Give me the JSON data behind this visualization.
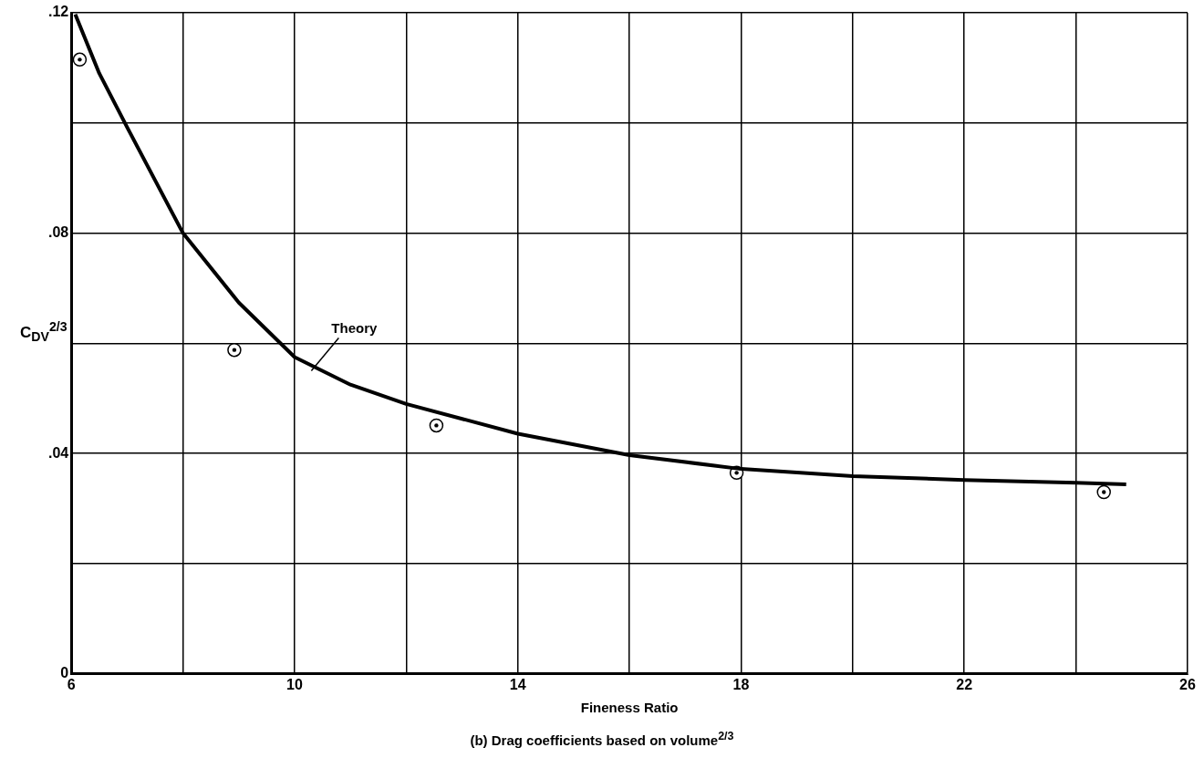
{
  "chart_data": {
    "type": "line",
    "xlabel": "Fineness Ratio",
    "ylabel": "C$_{D}$$_{V}$$^{2/3}$",
    "xlim": [
      6,
      26
    ],
    "ylim": [
      0,
      0.12
    ],
    "xticks": [
      6,
      {
        "value": 8,
        "label": null
      },
      10,
      {
        "value": 12,
        "label": null
      },
      14,
      {
        "value": 16,
        "label": null
      },
      18,
      {
        "value": 20,
        "label": null
      },
      22,
      {
        "value": 24,
        "label": null
      },
      26
    ],
    "yticks": [
      0,
      {
        "value": 0.02,
        "label": null
      },
      {
        "value": 0.04,
        "label": ".04"
      },
      {
        "value": 0.06,
        "label": null
      },
      {
        "value": 0.08,
        "label": ".08"
      },
      {
        "value": 0.1,
        "label": null
      },
      {
        "value": 0.12,
        "label": ".12"
      }
    ],
    "grid": true,
    "legend": false,
    "series": [
      {
        "type": "line",
        "color": "#000000",
        "marker": "none",
        "x": [
          6.07,
          6.5,
          7,
          8,
          9,
          10,
          11,
          12,
          14,
          16,
          18,
          20,
          22,
          24,
          24.9
        ],
        "values": [
          0.1197,
          0.109,
          0.0992,
          0.08,
          0.0674,
          0.0575,
          0.0525,
          0.049,
          0.0436,
          0.0397,
          0.0372,
          0.0359,
          0.0352,
          0.0347,
          0.0344
        ]
      },
      {
        "type": "scatter",
        "color": "#000000",
        "marker": "circle",
        "x": [
          6.15,
          8.92,
          12.54,
          17.92,
          24.5
        ],
        "values": [
          0.1115,
          0.0588,
          0.0451,
          0.0365,
          0.033
        ]
      }
    ],
    "annotations": [
      {
        "text": "Theory",
        "x": 10.3,
        "y": 0.055
      },
      "(b) Drag coefficients based on volume$^{2/3}$"
    ]
  }
}
